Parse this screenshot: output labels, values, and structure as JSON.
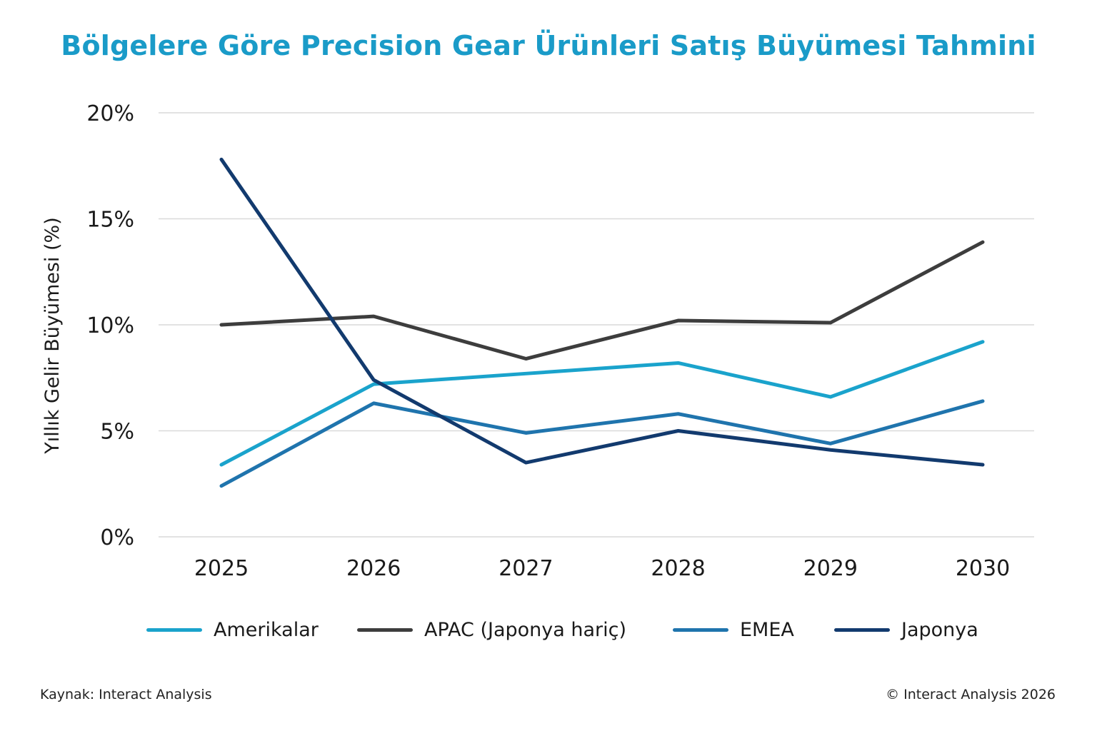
{
  "title": "Bölgelere Göre Precision Gear Ürünleri Satış Büyümesi Tahmini",
  "chart_data": {
    "type": "line",
    "title": "Bölgelere Göre Precision Gear Ürünleri Satış Büyümesi Tahmini",
    "xlabel": "",
    "ylabel": "Yıllık Gelir Büyümesi (%)",
    "categories": [
      "2025",
      "2026",
      "2027",
      "2028",
      "2029",
      "2030"
    ],
    "ylim": [
      0,
      20
    ],
    "yticks": [
      0,
      5,
      10,
      15,
      20
    ],
    "ytick_labels": [
      "0%",
      "5%",
      "10%",
      "15%",
      "20%"
    ],
    "grid": true,
    "legend_position": "bottom",
    "series": [
      {
        "name": "Amerikalar",
        "color": "#1aa3cc",
        "values": [
          3.4,
          7.2,
          7.7,
          8.2,
          6.6,
          9.2
        ]
      },
      {
        "name": "APAC (Japonya hariç)",
        "color": "#3d3d3d",
        "values": [
          10.0,
          10.4,
          8.4,
          10.2,
          10.1,
          13.9
        ]
      },
      {
        "name": "EMEA",
        "color": "#1f74ad",
        "values": [
          2.4,
          6.3,
          4.9,
          5.8,
          4.4,
          6.4
        ]
      },
      {
        "name": "Japonya",
        "color": "#123a6e",
        "values": [
          17.8,
          7.4,
          3.5,
          5.0,
          4.1,
          3.4
        ]
      }
    ]
  },
  "footer": {
    "source": "Kaynak: Interact Analysis",
    "copyright": "© Interact Analysis 2026"
  }
}
